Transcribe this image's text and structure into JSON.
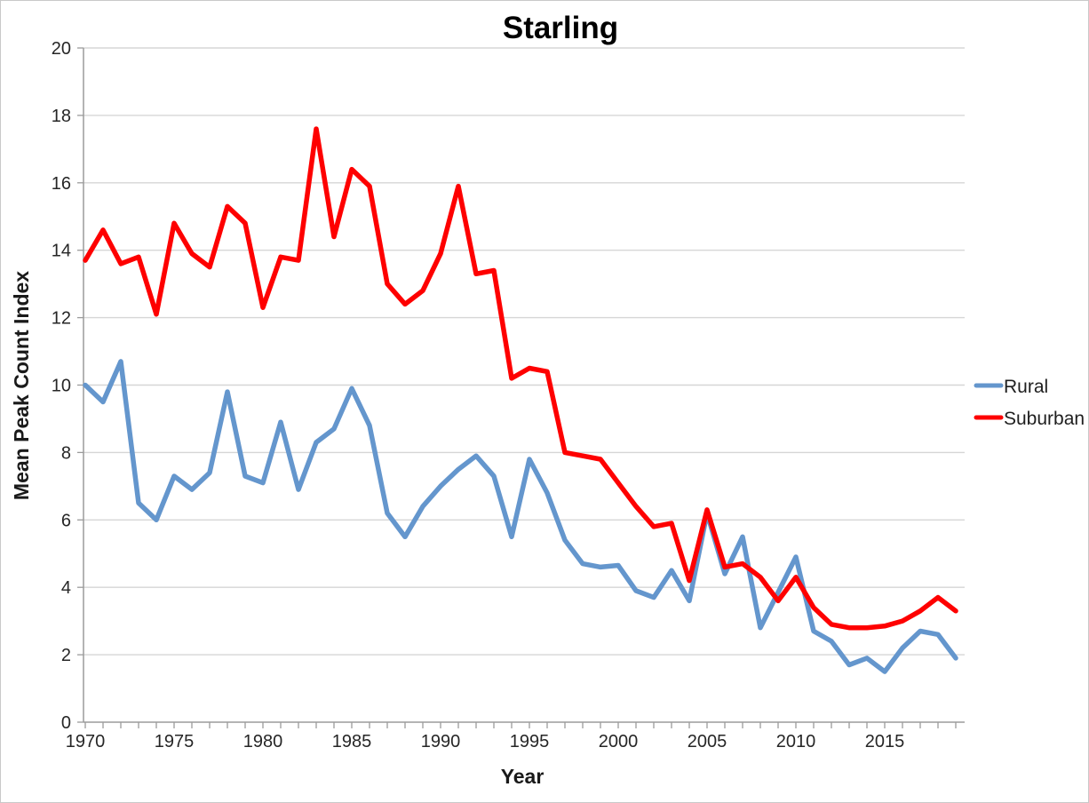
{
  "window": {
    "background": "#ffffff",
    "border_color": "#c9c9c9"
  },
  "chart_data": {
    "type": "line",
    "title": "Starling",
    "xlabel": "Year",
    "ylabel": "Mean Peak Count Index",
    "x": [
      1970,
      1971,
      1972,
      1973,
      1974,
      1975,
      1976,
      1977,
      1978,
      1979,
      1980,
      1981,
      1982,
      1983,
      1984,
      1985,
      1986,
      1987,
      1988,
      1989,
      1990,
      1991,
      1992,
      1993,
      1994,
      1995,
      1996,
      1997,
      1998,
      1999,
      2000,
      2001,
      2002,
      2003,
      2004,
      2005,
      2006,
      2007,
      2008,
      2009,
      2010,
      2011,
      2012,
      2013,
      2014,
      2015,
      2016,
      2017,
      2018,
      2019
    ],
    "x_tick_labels": [
      "1970",
      "1975",
      "1980",
      "1985",
      "1990",
      "1995",
      "2000",
      "2005",
      "2010",
      "2015"
    ],
    "x_tick_label_years": [
      1970,
      1975,
      1980,
      1985,
      1990,
      1995,
      2000,
      2005,
      2010,
      2015
    ],
    "y_ticks": [
      0,
      2,
      4,
      6,
      8,
      10,
      12,
      14,
      16,
      18,
      20
    ],
    "ylim": [
      0,
      20
    ],
    "grid": "horizontal",
    "legend_position": "right",
    "series": [
      {
        "name": "Rural",
        "color": "#6496CD",
        "values": [
          10.0,
          9.5,
          10.7,
          6.5,
          6.0,
          7.3,
          6.9,
          7.4,
          9.8,
          7.3,
          7.1,
          8.9,
          6.9,
          8.3,
          8.7,
          9.9,
          8.8,
          6.2,
          5.5,
          6.4,
          7.0,
          7.5,
          7.9,
          7.3,
          5.5,
          7.8,
          6.8,
          5.4,
          4.7,
          4.6,
          4.65,
          3.9,
          3.7,
          4.5,
          3.6,
          6.2,
          4.4,
          5.5,
          2.8,
          3.85,
          4.9,
          2.7,
          2.4,
          1.7,
          1.9,
          1.5,
          2.2,
          2.7,
          2.6,
          1.9
        ]
      },
      {
        "name": "Suburban",
        "color": "#FE0000",
        "values": [
          13.7,
          14.6,
          13.6,
          13.8,
          12.1,
          14.8,
          13.9,
          13.5,
          15.3,
          14.8,
          12.3,
          13.8,
          13.7,
          17.6,
          14.4,
          16.4,
          15.9,
          13.0,
          12.4,
          12.8,
          13.9,
          15.9,
          13.3,
          13.4,
          10.2,
          10.5,
          10.4,
          8.0,
          7.9,
          7.8,
          7.1,
          6.4,
          5.8,
          5.9,
          4.2,
          6.3,
          4.6,
          4.7,
          4.3,
          3.6,
          4.3,
          3.4,
          2.9,
          2.8,
          2.8,
          2.85,
          3.0,
          3.3,
          3.7,
          3.3
        ]
      }
    ],
    "style": {
      "gridline_color": "#d6d6d6",
      "axis_color": "#9b9b9b",
      "line_width": 5.5
    }
  }
}
